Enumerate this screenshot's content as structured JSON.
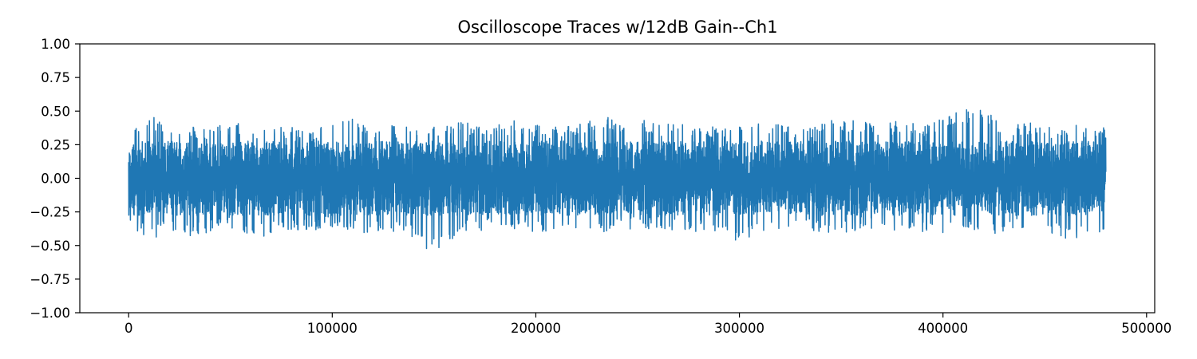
{
  "chart_data": {
    "type": "line",
    "title": "Oscilloscope Traces w/12dB Gain--Ch1",
    "xlabel": "",
    "ylabel": "",
    "xlim": [
      -24000,
      504000
    ],
    "ylim": [
      -1.0,
      1.0
    ],
    "x_ticks": [
      0,
      100000,
      200000,
      300000,
      400000,
      500000
    ],
    "x_tick_labels": [
      "0",
      "100000",
      "200000",
      "300000",
      "400000",
      "500000"
    ],
    "y_ticks": [
      -1.0,
      -0.75,
      -0.5,
      -0.25,
      0.0,
      0.25,
      0.5,
      0.75,
      1.0
    ],
    "y_tick_labels": [
      "−1.00",
      "−0.75",
      "−0.50",
      "−0.25",
      "0.00",
      "0.25",
      "0.50",
      "0.75",
      "1.00"
    ],
    "grid": false,
    "series": [
      {
        "color": "#1f77b4",
        "x_range": [
          0,
          480000
        ],
        "envelope_step": 10000,
        "upper": [
          0.37,
          0.47,
          0.4,
          0.39,
          0.38,
          0.42,
          0.4,
          0.37,
          0.39,
          0.38,
          0.42,
          0.45,
          0.39,
          0.4,
          0.38,
          0.41,
          0.43,
          0.42,
          0.4,
          0.44,
          0.41,
          0.38,
          0.39,
          0.49,
          0.42,
          0.46,
          0.4,
          0.41,
          0.41,
          0.38,
          0.4,
          0.42,
          0.4,
          0.39,
          0.41,
          0.45,
          0.42,
          0.41,
          0.43,
          0.41,
          0.44,
          0.53,
          0.52,
          0.4,
          0.43,
          0.38,
          0.4,
          0.4,
          0.39
        ],
        "lower": [
          -0.35,
          -0.46,
          -0.4,
          -0.45,
          -0.41,
          -0.37,
          -0.47,
          -0.43,
          -0.4,
          -0.39,
          -0.37,
          -0.4,
          -0.42,
          -0.4,
          -0.45,
          -0.57,
          -0.44,
          -0.4,
          -0.37,
          -0.4,
          -0.41,
          -0.38,
          -0.37,
          -0.41,
          -0.39,
          -0.38,
          -0.38,
          -0.39,
          -0.4,
          -0.43,
          -0.48,
          -0.4,
          -0.39,
          -0.37,
          -0.41,
          -0.43,
          -0.38,
          -0.4,
          -0.39,
          -0.41,
          -0.46,
          -0.37,
          -0.4,
          -0.42,
          -0.38,
          -0.43,
          -0.45,
          -0.44,
          -0.42
        ],
        "body_amplitude": 0.27
      }
    ]
  }
}
